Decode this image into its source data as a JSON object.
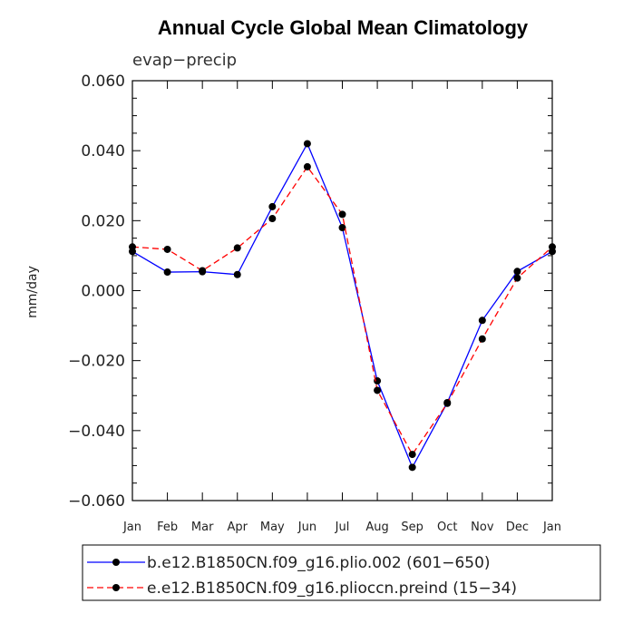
{
  "chart_data": {
    "type": "line",
    "title": "Annual Cycle Global Mean Climatology",
    "subtitle": "evap−precip",
    "xlabel": "",
    "ylabel": "mm/day",
    "categories": [
      "Jan",
      "Feb",
      "Mar",
      "Apr",
      "May",
      "Jun",
      "Jul",
      "Aug",
      "Sep",
      "Oct",
      "Nov",
      "Dec",
      "Jan"
    ],
    "ylim": [
      -0.06,
      0.06
    ],
    "yticks": [
      0.06,
      0.04,
      0.02,
      0.0,
      -0.02,
      -0.04,
      -0.06
    ],
    "ytick_labels": [
      "0.060",
      "0.040",
      "0.020",
      "0.000",
      "−0.020",
      "−0.040",
      "−0.060"
    ],
    "grid": false,
    "legend_position": "bottom",
    "series": [
      {
        "name": "b.e12.B1850CN.f09_g16.plio.002 (601−650)",
        "color": "#0000ff",
        "dash": "solid",
        "marker": "filled-circle",
        "values": [
          0.0112,
          0.0053,
          0.0054,
          0.0046,
          0.024,
          0.042,
          0.018,
          -0.0258,
          -0.0505,
          -0.032,
          -0.0085,
          0.0055,
          0.0112
        ]
      },
      {
        "name": "e.e12.B1850CN.f09_g16.plioccn.preind (15−34)",
        "color": "#ff0000",
        "dash": "dashed",
        "marker": "filled-circle",
        "values": [
          0.0125,
          0.0118,
          0.0057,
          0.0122,
          0.0206,
          0.0354,
          0.0218,
          -0.0285,
          -0.0468,
          -0.0322,
          -0.0138,
          0.0036,
          0.0125
        ]
      }
    ]
  }
}
